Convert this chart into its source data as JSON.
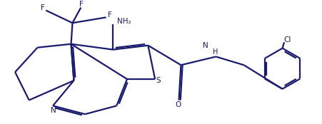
{
  "bg_color": "#ffffff",
  "line_color": "#1a1a6e",
  "line_width": 1.6,
  "figsize": [
    4.52,
    1.74
  ],
  "dpi": 100,
  "xlim": [
    0,
    9.04
  ],
  "ylim": [
    0,
    3.48
  ]
}
